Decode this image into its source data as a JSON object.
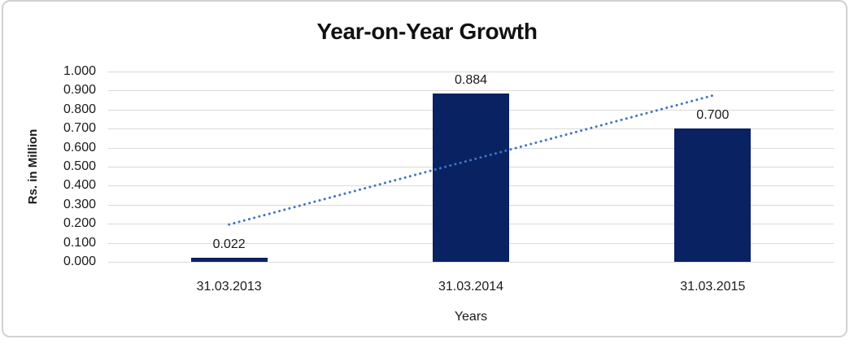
{
  "chart_data": {
    "type": "bar",
    "title": "Year-on-Year Growth",
    "xlabel": "Years",
    "ylabel": "Rs. in Million",
    "categories": [
      "31.03.2013",
      "31.03.2014",
      "31.03.2015"
    ],
    "values": [
      0.022,
      0.884,
      0.7
    ],
    "data_labels": [
      "0.022",
      "0.884",
      "0.700"
    ],
    "y_ticks": [
      "1.000",
      "0.900",
      "0.800",
      "0.700",
      "0.600",
      "0.500",
      "0.400",
      "0.300",
      "0.200",
      "0.100",
      "0.000"
    ],
    "ylim": [
      0,
      1.0
    ],
    "grid": true,
    "legend_position": "none",
    "trendline": {
      "type": "linear",
      "style": "dotted",
      "start_value": 0.196,
      "end_value": 0.874,
      "color": "#4472C4"
    },
    "colors": {
      "bar": "#092262",
      "gridline": "#d9d9d9",
      "frame_border": "#d2d2d2",
      "text": "#1a1a1a"
    }
  }
}
